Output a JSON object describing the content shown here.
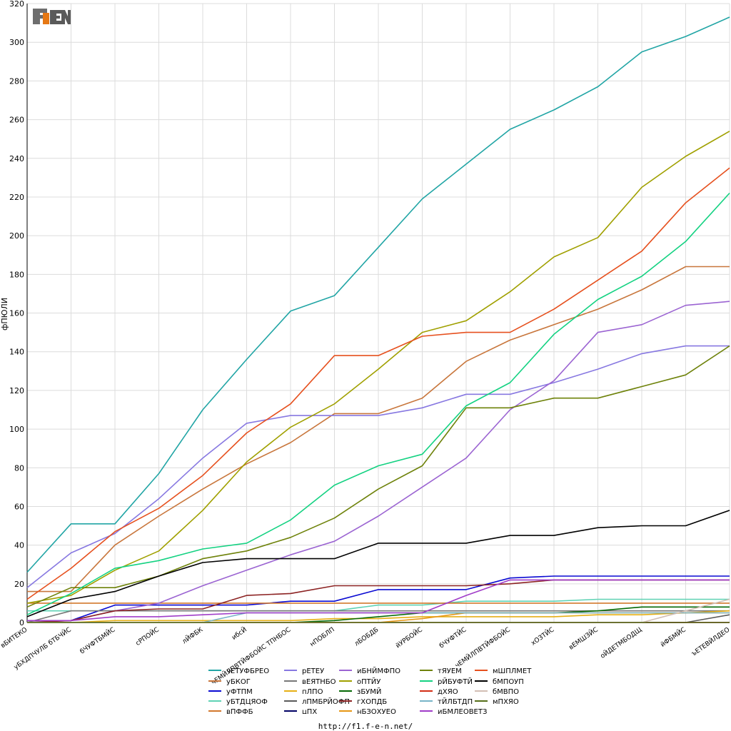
{
  "footer_url": "http://f1.f-e-n.net/",
  "logo_text": "F1FEN",
  "chart_data": {
    "type": "line",
    "ylabel": "фПЮЛИ",
    "ylim": [
      0,
      320
    ],
    "yticks": [
      0,
      20,
      40,
      60,
      80,
      100,
      120,
      140,
      160,
      180,
      200,
      220,
      240,
      260,
      280,
      300,
      320
    ],
    "grid": true,
    "legend_position": "bottom",
    "categories": [
      "вБИТЕКО",
      "уБХДПЧУЛБ бТБЧЙС",
      "бЧУФТБМЙС",
      "сРПОЙС",
      "лЙФБК",
      "ибсЙ",
      "чЕМЙЛПВТЙФБОЙС ТПНБОС",
      "нПОБЛП",
      "лБОБДБ",
      "йУРБОЙС",
      "бЧУФТЙС",
      "чЕМЙЛПВТЙФБОЙС",
      "хОЗТЙС",
      "вЕМШЗЙС",
      "оЙДЕТМБОДЩ",
      "йФБМЙС",
      "ъЕТЕВЙЛДЕО"
    ],
    "series": [
      {
        "name": "чЕТУФБРЕО",
        "color": "#21a5a5",
        "values": [
          26,
          51,
          51,
          77,
          110,
          136,
          161,
          169,
          194,
          219,
          237,
          255,
          265,
          277,
          295,
          303,
          313
        ]
      },
      {
        "name": "уБКОГ",
        "color": "#c8763c",
        "values": [
          16,
          16,
          40,
          55,
          69,
          82,
          93,
          108,
          108,
          116,
          135,
          146,
          154,
          162,
          172,
          184,
          184
        ]
      },
      {
        "name": "уФТПМ",
        "color": "#0a0ad2",
        "values": [
          1,
          1,
          9,
          9,
          9,
          9,
          11,
          11,
          17,
          17,
          17,
          23,
          24,
          24,
          24,
          24,
          24
        ]
      },
      {
        "name": "уБТДЦЯОФ",
        "color": "#5fd2b4",
        "values": [
          6,
          6,
          6,
          6,
          6,
          6,
          6,
          6,
          9,
          9,
          11,
          11,
          11,
          12,
          12,
          12,
          12
        ]
      },
      {
        "name": "вПФФБ",
        "color": "#d2782d",
        "values": [
          10,
          10,
          10,
          10,
          10,
          10,
          10,
          10,
          10,
          10,
          10,
          10,
          10,
          10,
          10,
          10,
          10
        ]
      },
      {
        "name": "рЕТЕУ",
        "color": "#8778e1",
        "values": [
          18,
          36,
          46,
          64,
          85,
          103,
          107,
          107,
          107,
          111,
          118,
          118,
          124,
          131,
          139,
          143,
          143
        ]
      },
      {
        "name": "вЕЯТНБО",
        "color": "#787878",
        "values": [
          0,
          6,
          6,
          6,
          6,
          6,
          6,
          6,
          6,
          6,
          6,
          6,
          6,
          6,
          6,
          6,
          6
        ]
      },
      {
        "name": "пЛПО",
        "color": "#e6af14",
        "values": [
          0,
          0,
          1,
          1,
          1,
          1,
          1,
          2,
          2,
          3,
          3,
          3,
          3,
          4,
          4,
          5,
          6
        ]
      },
      {
        "name": "лПМБРЙОФП",
        "color": "#5a5a5a",
        "values": [
          0,
          0,
          0,
          0,
          0,
          0,
          0,
          0,
          0,
          0,
          0,
          0,
          0,
          0,
          0,
          0,
          4
        ]
      },
      {
        "name": "цПХ",
        "color": "#000064",
        "values": [
          0,
          0,
          0,
          0,
          0,
          0,
          0,
          0,
          0,
          0,
          0,
          0,
          0,
          0,
          0,
          0,
          0
        ]
      },
      {
        "name": "иБНЙМФПО",
        "color": "#9b64d2",
        "values": [
          0,
          1,
          6,
          10,
          19,
          27,
          35,
          42,
          55,
          70,
          85,
          110,
          125,
          150,
          154,
          164,
          166
        ]
      },
      {
        "name": "оПТЙУ",
        "color": "#a0a000",
        "values": [
          10,
          14,
          27,
          37,
          58,
          83,
          101,
          113,
          131,
          150,
          156,
          171,
          189,
          199,
          225,
          241,
          254
        ]
      },
      {
        "name": "зБУМЙ",
        "color": "#056905",
        "values": [
          0,
          0,
          0,
          0,
          0,
          0,
          0,
          1,
          3,
          5,
          5,
          5,
          5,
          6,
          8,
          8,
          8
        ]
      },
      {
        "name": "гХОПДБ",
        "color": "#8c2323",
        "values": [
          0,
          1,
          6,
          7,
          7,
          14,
          15,
          19,
          19,
          19,
          19,
          20,
          22,
          22,
          22,
          22,
          22
        ]
      },
      {
        "name": "нБЗОХУЕО",
        "color": "#e69614",
        "values": [
          0,
          0,
          0,
          0,
          0,
          0,
          0,
          0,
          0,
          2,
          5,
          5,
          5,
          5,
          5,
          5,
          5
        ]
      },
      {
        "name": "тЯУЕМ",
        "color": "#6e820a",
        "values": [
          8,
          18,
          18,
          24,
          33,
          37,
          44,
          54,
          69,
          81,
          111,
          111,
          116,
          116,
          122,
          128,
          143
        ]
      },
      {
        "name": "рЙБУФТЙ",
        "color": "#14d282",
        "values": [
          4,
          15,
          28,
          32,
          38,
          41,
          53,
          71,
          81,
          87,
          112,
          124,
          149,
          167,
          179,
          197,
          222
        ]
      },
      {
        "name": "дХЯО",
        "color": "#d22d14",
        "values": [
          0,
          0,
          0,
          0,
          0,
          0,
          0,
          0,
          0,
          0,
          0,
          0,
          0,
          0,
          0,
          0,
          0
        ]
      },
      {
        "name": "тЙЛБТДП",
        "color": "#78b4c8",
        "values": [
          0,
          0,
          0,
          0,
          0,
          5,
          5,
          5,
          5,
          5,
          5,
          5,
          5,
          5,
          5,
          5,
          5
        ]
      },
      {
        "name": "иБМЛЕОВЕТЗ",
        "color": "#a03cc8",
        "values": [
          1,
          1,
          3,
          3,
          4,
          5,
          5,
          5,
          5,
          5,
          14,
          22,
          22,
          22,
          22,
          22,
          22
        ]
      },
      {
        "name": "мШПЛМЕТ",
        "color": "#e6501e",
        "values": [
          12,
          28,
          47,
          59,
          76,
          98,
          113,
          138,
          138,
          148,
          150,
          150,
          162,
          177,
          192,
          217,
          235
        ]
      },
      {
        "name": "бМПОУП",
        "color": "#000000",
        "values": [
          3,
          12,
          16,
          24,
          31,
          33,
          33,
          33,
          41,
          41,
          41,
          45,
          45,
          49,
          50,
          50,
          58
        ]
      },
      {
        "name": "бМВПО",
        "color": "#d2beb4",
        "values": [
          0,
          0,
          0,
          0,
          0,
          0,
          0,
          0,
          0,
          0,
          0,
          0,
          0,
          0,
          0,
          6,
          12
        ]
      },
      {
        "name": "мПХЯО",
        "color": "#556e19",
        "values": [
          0,
          0,
          0,
          0,
          0,
          0,
          0,
          0,
          0,
          0,
          0,
          0,
          0,
          0,
          0,
          0,
          0
        ]
      }
    ]
  }
}
